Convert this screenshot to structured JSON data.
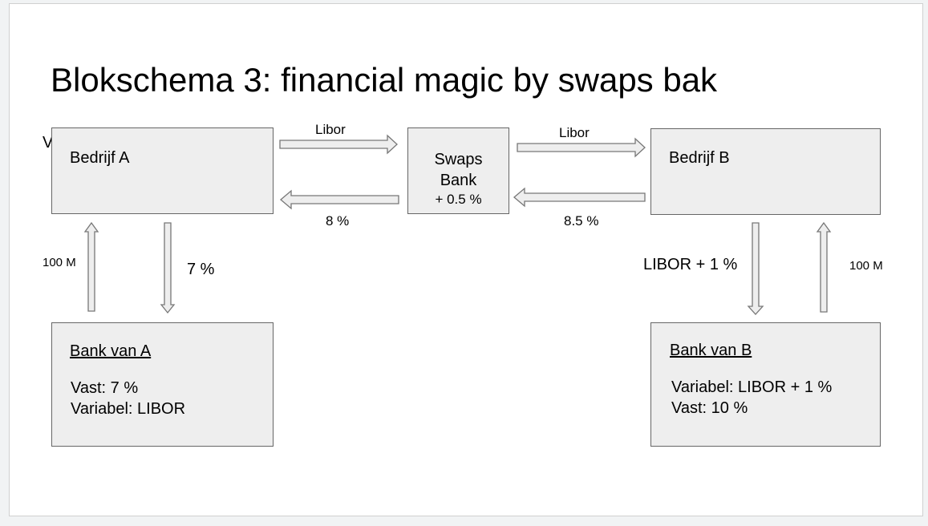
{
  "slide": {
    "title": "Blokschema 3: financial magic by swaps bak",
    "hidden_letter": "V",
    "bedrijf_a": "Bedrijf A",
    "bedrijf_b": "Bedrijf B",
    "swaps_bank": {
      "line1": "Swaps",
      "line2": "Bank",
      "line3": "+ 0.5 %"
    },
    "bank_a": {
      "title": "Bank van A",
      "line1": "Vast: 7 %",
      "line2": "Variabel: LIBOR"
    },
    "bank_b": {
      "title": "Bank van B",
      "line1": "Variabel: LIBOR + 1 %",
      "line2": "Vast: 10 %"
    },
    "labels": {
      "libor_left": "Libor",
      "eight_pct": "8 %",
      "libor_right": "Libor",
      "eight_half_pct": "8.5 %",
      "hundred_m_left": "100 M",
      "seven_pct": "7 %",
      "libor_plus_one": "LIBOR + 1 %",
      "hundred_m_right": "100 M"
    }
  }
}
